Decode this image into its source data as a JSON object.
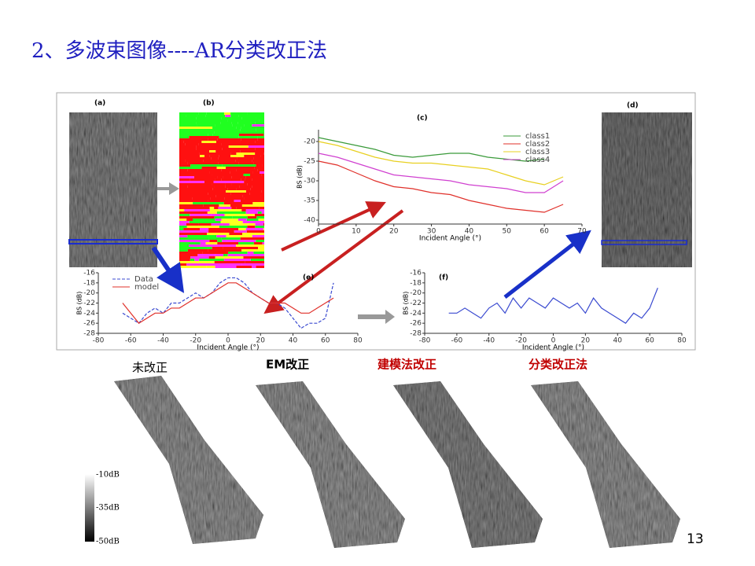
{
  "title": "2、多波束图像----AR分类改正法",
  "page_number": "13",
  "figure": {
    "panel_labels": [
      "(a)",
      "(b)",
      "(d)"
    ]
  },
  "comparison": {
    "captions": [
      "未改正",
      "EM改正",
      "建模法改正",
      "分类改正法"
    ]
  },
  "colorbar": {
    "labels": [
      "-10dB",
      "-35dB",
      "-50dB"
    ]
  },
  "chart_data": [
    {
      "type": "line",
      "title": "(c)",
      "x_label": "Incident Angle (°)",
      "y_label": "BS (dB)",
      "x": [
        0,
        5,
        10,
        15,
        20,
        25,
        30,
        35,
        40,
        45,
        50,
        55,
        60,
        65
      ],
      "series": [
        {
          "name": "class1",
          "color": "#3a9a3a",
          "values": [
            -19,
            -20,
            -21,
            -22,
            -23.5,
            -24,
            -23.5,
            -23,
            -23,
            -24,
            -24.5,
            -25,
            -24.5,
            null
          ]
        },
        {
          "name": "class2",
          "color": "#e0302a",
          "values": [
            -25,
            -26,
            -28,
            -30,
            -31.5,
            -32,
            -33,
            -33.5,
            -35,
            -36,
            -37,
            -37.5,
            -38,
            -36
          ]
        },
        {
          "name": "class3",
          "color": "#e8d020",
          "values": [
            -20,
            -21,
            -22.5,
            -24,
            -25,
            -25.5,
            -25.5,
            -26,
            -26.5,
            -27,
            -28.5,
            -30,
            -31,
            -29
          ]
        },
        {
          "name": "class4",
          "color": "#d040d0",
          "values": [
            -23,
            -24,
            -25.5,
            -27,
            -28.5,
            -29,
            -29.5,
            -30,
            -31,
            -31.5,
            -32,
            -33,
            -33,
            -30
          ]
        }
      ],
      "xlim": [
        0,
        70
      ],
      "xticks": [
        0,
        10,
        20,
        30,
        40,
        50,
        60,
        70
      ],
      "ylim": [
        -41,
        -17
      ],
      "yticks": [
        -20,
        -25,
        -30,
        -35,
        -40
      ],
      "legend": "upper-right"
    },
    {
      "type": "line",
      "title": "(e)",
      "x_label": "Incident Angle (°)",
      "y_label": "BS (dB)",
      "x": [
        -65,
        -60,
        -55,
        -50,
        -45,
        -40,
        -35,
        -30,
        -25,
        -20,
        -15,
        -10,
        -5,
        0,
        5,
        10,
        15,
        20,
        25,
        30,
        35,
        40,
        45,
        50,
        55,
        60,
        65
      ],
      "series": [
        {
          "name": "Data",
          "color": "#3a4ad0",
          "dashed": true,
          "values": [
            -24,
            -25,
            -26,
            -24,
            -23,
            -24,
            -22,
            -22,
            -21,
            -20,
            -21,
            -20,
            -18,
            -17,
            -17,
            -18,
            -20,
            -21,
            -22,
            -22,
            -23,
            -25,
            -27,
            -26,
            -26,
            -25,
            -18
          ]
        },
        {
          "name": "model",
          "color": "#e0302a",
          "values": [
            -22,
            -24,
            -26,
            -25,
            -24,
            -24,
            -23,
            -23,
            -22,
            -21,
            -21,
            -20,
            -19,
            -18,
            -18,
            -19,
            -20,
            -21,
            -22,
            -22,
            -22,
            -23,
            -24,
            -24,
            -23,
            -22,
            -21
          ]
        }
      ],
      "xlim": [
        -80,
        80
      ],
      "xticks": [
        -80,
        -60,
        -40,
        -20,
        0,
        20,
        40,
        60,
        80
      ],
      "ylim": [
        -28,
        -16
      ],
      "yticks": [
        -16,
        -18,
        -20,
        -22,
        -24,
        -26,
        -28
      ],
      "legend": "upper-left"
    },
    {
      "type": "line",
      "title": "(f)",
      "x_label": "Incident Angle (°)",
      "y_label": "BS (dB)",
      "x": [
        -65,
        -60,
        -55,
        -50,
        -45,
        -40,
        -35,
        -30,
        -25,
        -20,
        -15,
        -10,
        -5,
        0,
        5,
        10,
        15,
        20,
        25,
        30,
        35,
        40,
        45,
        50,
        55,
        60,
        65
      ],
      "series": [
        {
          "color": "#3a4ad0",
          "values": [
            -24,
            -24,
            -23,
            -24,
            -25,
            -23,
            -22,
            -24,
            -21,
            -23,
            -21,
            -22,
            -23,
            -21,
            -22,
            -23,
            -22,
            -24,
            -21,
            -23,
            -24,
            -25,
            -26,
            -24,
            -25,
            -23,
            -19
          ]
        }
      ],
      "xlim": [
        -80,
        80
      ],
      "xticks": [
        -80,
        -60,
        -40,
        -20,
        0,
        20,
        40,
        60,
        80
      ],
      "ylim": [
        -28,
        -16
      ],
      "yticks": [
        -16,
        -18,
        -20,
        -22,
        -24,
        -26,
        -28
      ]
    }
  ]
}
